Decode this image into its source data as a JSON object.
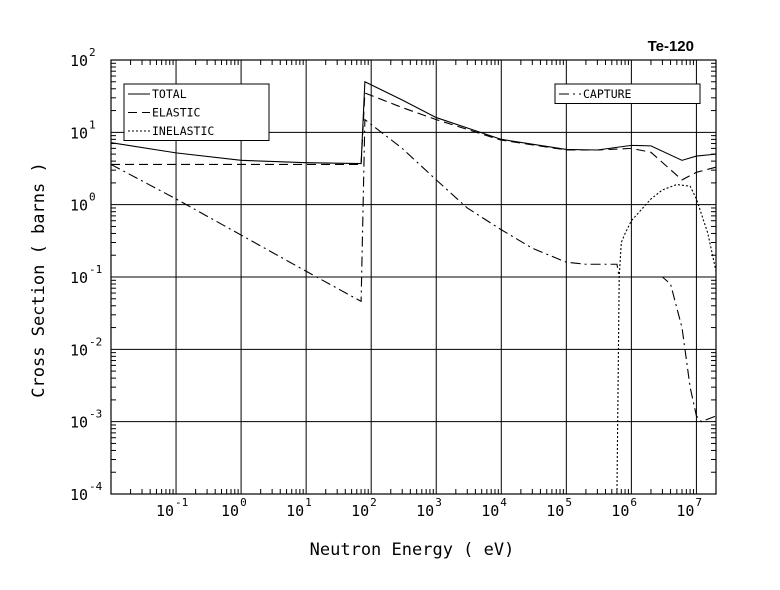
{
  "chart_data": {
    "type": "line",
    "title": "Te-120",
    "xlabel": "Neutron Energy ( eV)",
    "ylabel": "Cross Section ( barns )",
    "x_scale": "log",
    "y_scale": "log",
    "xlim": [
      0.01,
      20000000
    ],
    "ylim": [
      0.0001,
      100
    ],
    "x_ticks": [
      {
        "base": "10",
        "exp": "-1"
      },
      {
        "base": "10",
        "exp": "0"
      },
      {
        "base": "10",
        "exp": "1"
      },
      {
        "base": "10",
        "exp": "2"
      },
      {
        "base": "10",
        "exp": "3"
      },
      {
        "base": "10",
        "exp": "4"
      },
      {
        "base": "10",
        "exp": "5"
      },
      {
        "base": "10",
        "exp": "6"
      },
      {
        "base": "10",
        "exp": "7"
      }
    ],
    "y_ticks": [
      {
        "base": "10",
        "exp": "-4"
      },
      {
        "base": "10",
        "exp": "-3"
      },
      {
        "base": "10",
        "exp": "-2"
      },
      {
        "base": "10",
        "exp": "-1"
      },
      {
        "base": "10",
        "exp": "0"
      },
      {
        "base": "10",
        "exp": "1"
      },
      {
        "base": "10",
        "exp": "2"
      }
    ],
    "grid": true,
    "legends": [
      {
        "placement": "top-left",
        "entries": [
          "TOTAL",
          "ELASTIC",
          "INELASTIC"
        ]
      },
      {
        "placement": "top-right",
        "entries": [
          "CAPTURE"
        ]
      }
    ],
    "series": [
      {
        "name": "TOTAL",
        "style": "solid",
        "points": [
          [
            0.01,
            7.2
          ],
          [
            0.1,
            5.2
          ],
          [
            1,
            4.1
          ],
          [
            10,
            3.8
          ],
          [
            70,
            3.7
          ],
          [
            70,
            3.7
          ],
          [
            80,
            50
          ],
          [
            300,
            28
          ],
          [
            1000,
            16
          ],
          [
            10000,
            8
          ],
          [
            100000,
            5.8
          ],
          [
            300000,
            5.7
          ],
          [
            1000000,
            6.6
          ],
          [
            2000000,
            6.5
          ],
          [
            6000000,
            4.1
          ],
          [
            10000000,
            4.7
          ],
          [
            20000000,
            5.0
          ]
        ]
      },
      {
        "name": "ELASTIC",
        "style": "dashed",
        "points": [
          [
            0.01,
            3.6
          ],
          [
            1,
            3.6
          ],
          [
            10,
            3.6
          ],
          [
            70,
            3.6
          ],
          [
            80,
            35
          ],
          [
            300,
            22
          ],
          [
            1000,
            15
          ],
          [
            10000,
            7.8
          ],
          [
            100000,
            5.7
          ],
          [
            300000,
            5.7
          ],
          [
            1000000,
            6.0
          ],
          [
            2000000,
            5.3
          ],
          [
            6000000,
            2.2
          ],
          [
            10000000,
            2.8
          ],
          [
            20000000,
            3.3
          ]
        ]
      },
      {
        "name": "INELASTIC",
        "style": "dotted",
        "points": [
          [
            600000,
            0.0001
          ],
          [
            650000,
            0.1
          ],
          [
            700000,
            0.3
          ],
          [
            800000,
            0.4
          ],
          [
            1000000,
            0.6
          ],
          [
            2000000,
            1.2
          ],
          [
            3000000,
            1.6
          ],
          [
            5000000,
            1.9
          ],
          [
            8000000,
            1.8
          ],
          [
            10000000,
            1.2
          ],
          [
            15000000,
            0.4
          ],
          [
            20000000,
            0.12
          ]
        ]
      },
      {
        "name": "CAPTURE",
        "style": "dash-dot",
        "points": [
          [
            0.01,
            3.6
          ],
          [
            0.1,
            1.2
          ],
          [
            1,
            0.38
          ],
          [
            10,
            0.12
          ],
          [
            70,
            0.046
          ],
          [
            70,
            0.046
          ],
          [
            80,
            15
          ],
          [
            300,
            6
          ],
          [
            1000,
            2.2
          ],
          [
            3000,
            0.9
          ],
          [
            10000,
            0.45
          ],
          [
            30000,
            0.25
          ],
          [
            100000,
            0.16
          ],
          [
            200000,
            0.15
          ],
          [
            500000,
            0.15
          ],
          [
            600000,
            0.15
          ],
          [
            650000,
            0.1
          ],
          [
            1000000,
            0.1
          ],
          [
            2000000,
            0.1
          ],
          [
            3000000,
            0.1
          ],
          [
            4000000,
            0.08
          ],
          [
            6000000,
            0.02
          ],
          [
            8000000,
            0.003
          ],
          [
            10000000,
            0.0012
          ],
          [
            12000000,
            0.001
          ],
          [
            20000000,
            0.0012
          ]
        ]
      }
    ]
  }
}
